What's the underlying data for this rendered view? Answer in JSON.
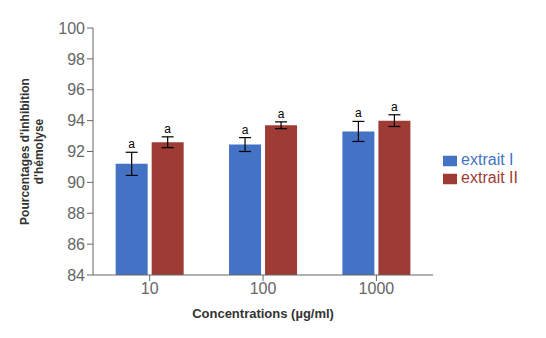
{
  "chart_data": {
    "type": "bar",
    "categories": [
      "10",
      "100",
      "1000"
    ],
    "series": [
      {
        "name": "extrait I",
        "color": "#4472C4",
        "values": [
          91.2,
          92.45,
          93.3
        ],
        "errors": [
          0.75,
          0.45,
          0.65
        ],
        "annotations": [
          "a",
          "a",
          "a"
        ]
      },
      {
        "name": "extrait II",
        "color": "#9E3B35",
        "values": [
          92.6,
          93.7,
          94.0
        ],
        "errors": [
          0.35,
          0.22,
          0.38
        ],
        "annotations": [
          "a",
          "a",
          "a"
        ]
      }
    ],
    "xlabel": "Concentrations  (µg/ml)",
    "ylabel": "Pourcentages d'inhibition\nd'hémolyse",
    "ylim": [
      84,
      100
    ],
    "yticks": [
      84,
      86,
      88,
      90,
      92,
      94,
      96,
      98,
      100
    ],
    "legend": "right",
    "grid": false
  }
}
